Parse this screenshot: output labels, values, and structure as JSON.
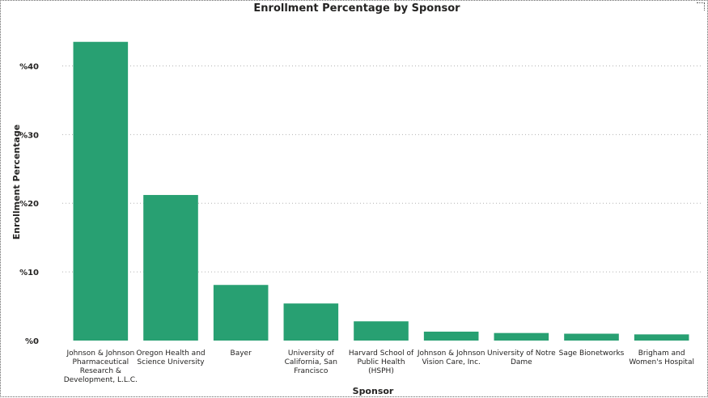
{
  "chart_data": {
    "type": "bar",
    "title": "Enrollment Percentage by Sponsor",
    "xlabel": "Sponsor",
    "ylabel": "Enrollment Percentage",
    "ylim": [
      0,
      45
    ],
    "yticks": [
      0,
      10,
      20,
      30,
      40
    ],
    "ytick_labels": [
      "%0",
      "%10",
      "%20",
      "%30",
      "%40"
    ],
    "grid": true,
    "bar_color": "#28A072",
    "categories": [
      "Johnson & Johnson Pharmaceutical Research & Development, L.L.C.",
      "Oregon Health and Science University",
      "Bayer",
      "University of California, San Francisco",
      "Harvard School of Public Health (HSPH)",
      "Johnson & Johnson Vision Care, Inc.",
      "University of Notre Dame",
      "Sage Bionetworks",
      "Brigham and Women's Hospital"
    ],
    "category_lines": [
      [
        "Johnson & Johnson",
        "Pharmaceutical",
        "Research &",
        "Development, L.L.C."
      ],
      [
        "Oregon Health and",
        "Science University"
      ],
      [
        "Bayer"
      ],
      [
        "University of",
        "California, San",
        "Francisco"
      ],
      [
        "Harvard School of",
        "Public Health",
        "(HSPH)"
      ],
      [
        "Johnson & Johnson",
        "Vision Care, Inc."
      ],
      [
        "University of Notre",
        "Dame"
      ],
      [
        "Sage Bionetworks"
      ],
      [
        "Brigham and",
        "Women's Hospital"
      ]
    ],
    "values": [
      43.5,
      21.2,
      8.1,
      5.4,
      2.8,
      1.3,
      1.1,
      1.0,
      0.9
    ]
  }
}
